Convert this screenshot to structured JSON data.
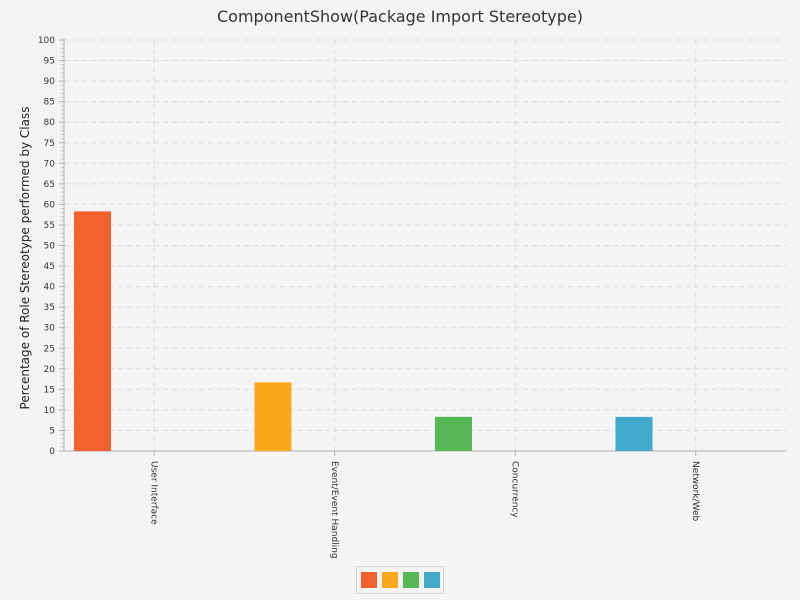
{
  "chart_data": {
    "type": "bar",
    "title": "ComponentShow(Package Import Stereotype)",
    "ylabel": "Percentage of Role Stereotype performed by Class",
    "xlabel": "",
    "categories": [
      "User Interface",
      "Event/Event Handling",
      "Concurrency",
      "Network/Web"
    ],
    "values": [
      58.3,
      16.7,
      8.3,
      8.3
    ],
    "colors": [
      "#f3622d",
      "#fba71b",
      "#57b757",
      "#41a9c9"
    ],
    "ylim": [
      0,
      100
    ],
    "ytick_step": 5,
    "grid": true,
    "legend": {
      "placement": "bottom-center",
      "entries": [
        "",
        "",
        "",
        ""
      ]
    }
  }
}
